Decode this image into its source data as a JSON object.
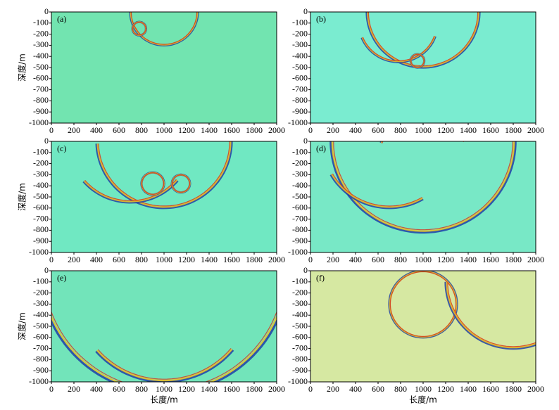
{
  "chart_data": [
    {
      "type": "image",
      "label": "(a)",
      "color": "#72e4b0",
      "ylabel": "深度/m",
      "xlim": [
        0,
        2000
      ],
      "ylim": [
        -1000,
        0
      ],
      "xticks": [
        0,
        200,
        400,
        600,
        800,
        1000,
        1200,
        1400,
        1600,
        1800,
        2000
      ],
      "yticks": [
        0,
        -100,
        -200,
        -300,
        -400,
        -500,
        -600,
        -700,
        -800,
        -900,
        -1000
      ]
    },
    {
      "type": "image",
      "label": "(b)",
      "color": "#7aecd0",
      "xlim": [
        0,
        2000
      ],
      "ylim": [
        -1000,
        0
      ],
      "xticks": [
        0,
        200,
        400,
        600,
        800,
        1000,
        1200,
        1400,
        1600,
        1800,
        2000
      ],
      "yticks": [
        0,
        -100,
        -200,
        -300,
        -400,
        -500,
        -600,
        -700,
        -800,
        -900,
        -1000
      ]
    },
    {
      "type": "image",
      "label": "(c)",
      "color": "#70e8c2",
      "ylabel": "深度/m",
      "xlim": [
        0,
        2000
      ],
      "ylim": [
        -1000,
        0
      ],
      "xticks": [
        0,
        200,
        400,
        600,
        800,
        1000,
        1200,
        1400,
        1600,
        1800,
        2000
      ],
      "yticks": [
        0,
        -100,
        -200,
        -300,
        -400,
        -500,
        -600,
        -700,
        -800,
        -900,
        -1000
      ]
    },
    {
      "type": "image",
      "label": "(d)",
      "color": "#78e8c6",
      "xlim": [
        0,
        2000
      ],
      "ylim": [
        -1000,
        0
      ],
      "xticks": [
        0,
        200,
        400,
        600,
        800,
        1000,
        1200,
        1400,
        1600,
        1800,
        2000
      ],
      "yticks": [
        0,
        -100,
        -200,
        -300,
        -400,
        -500,
        -600,
        -700,
        -800,
        -900,
        -1000
      ]
    },
    {
      "type": "image",
      "label": "(e)",
      "color": "#72e4ba",
      "ylabel": "深度/m",
      "xlabel": "长度/m",
      "xlim": [
        0,
        2000
      ],
      "ylim": [
        -1000,
        0
      ],
      "xticks": [
        0,
        200,
        400,
        600,
        800,
        1000,
        1200,
        1400,
        1600,
        1800,
        2000
      ],
      "yticks": [
        0,
        -100,
        -200,
        -300,
        -400,
        -500,
        -600,
        -700,
        -800,
        -900,
        -1000
      ]
    },
    {
      "type": "image",
      "label": "(f)",
      "color": "#d6e8a2",
      "xlabel": "长度/m",
      "xlim": [
        0,
        2000
      ],
      "ylim": [
        -1000,
        0
      ],
      "xticks": [
        0,
        200,
        400,
        600,
        800,
        1000,
        1200,
        1400,
        1600,
        1800,
        2000
      ],
      "yticks": [
        0,
        -100,
        -200,
        -300,
        -400,
        -500,
        -600,
        -700,
        -800,
        -900,
        -1000
      ]
    }
  ]
}
